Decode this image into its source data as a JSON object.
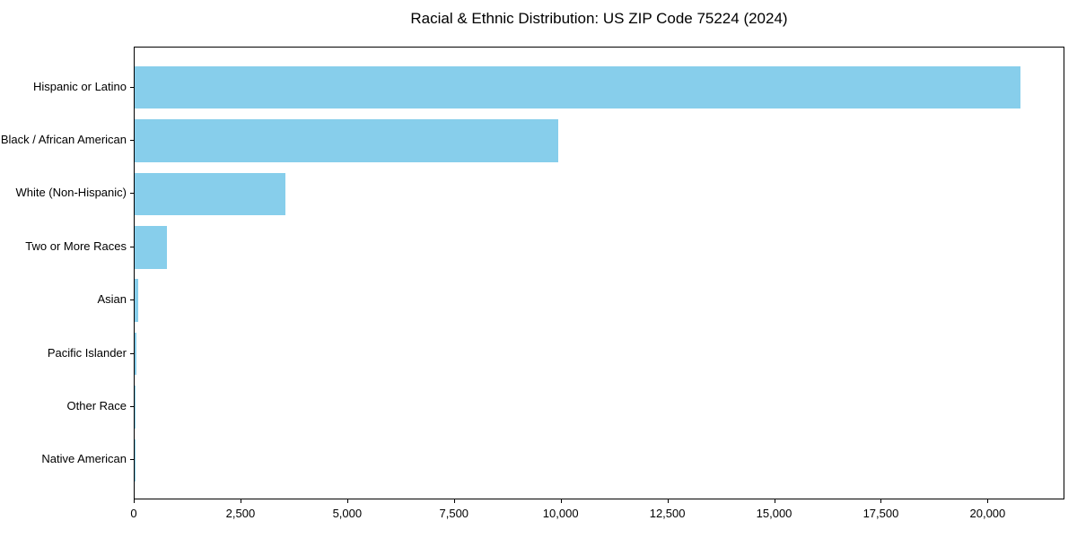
{
  "title": "Racial & Ethnic Distribution: US ZIP Code 75224 (2024)",
  "chart_data": {
    "type": "bar",
    "orientation": "horizontal",
    "title": "Racial & Ethnic Distribution: US ZIP Code 75224 (2024)",
    "categories": [
      "Hispanic or Latino",
      "Black / African American",
      "White (Non-Hispanic)",
      "Two or More Races",
      "Asian",
      "Pacific Islander",
      "Other Race",
      "Native American"
    ],
    "values": [
      20750,
      9930,
      3530,
      760,
      75,
      45,
      15,
      5
    ],
    "xlabel": "",
    "ylabel": "",
    "xlim": [
      0,
      21800
    ],
    "xticks": [
      0,
      2500,
      5000,
      7500,
      10000,
      12500,
      15000,
      17500,
      20000
    ],
    "xtick_labels": [
      "0",
      "2,500",
      "5,000",
      "7,500",
      "10,000",
      "12,500",
      "15,000",
      "17,500",
      "20,000"
    ],
    "bar_color": "#87CEEB",
    "grid": false,
    "legend": null
  }
}
